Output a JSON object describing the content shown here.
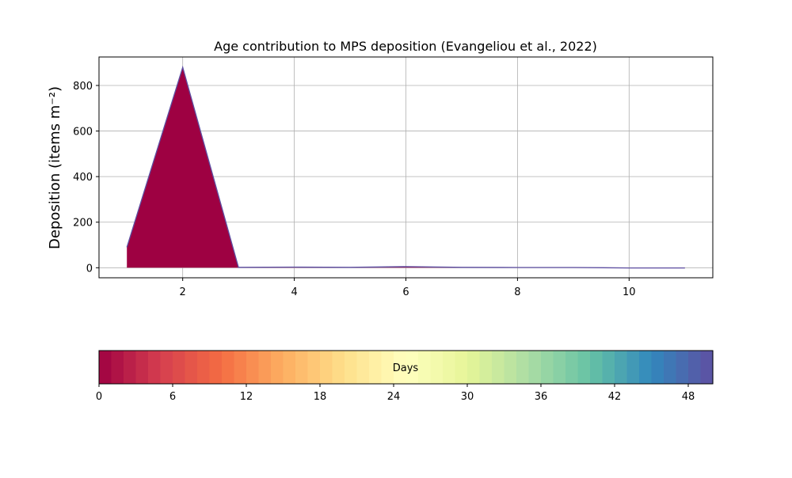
{
  "chart_data": {
    "type": "area",
    "title": "Age contribution to MPS deposition (Evangeliou et al., 2022)",
    "xlabel": "",
    "ylabel": "Deposition (items m⁻²)",
    "xlim": [
      0.5,
      11.5
    ],
    "ylim": [
      -44,
      925
    ],
    "x_ticks": [
      2,
      4,
      6,
      8,
      10
    ],
    "y_ticks": [
      0,
      200,
      400,
      600,
      800
    ],
    "grid": true,
    "x": [
      1,
      2,
      3,
      4,
      5,
      6,
      7,
      8,
      9,
      10,
      11
    ],
    "series": [
      {
        "values": [
          90,
          880,
          2,
          3,
          2,
          5,
          2,
          1,
          1,
          -1,
          -1
        ],
        "color": "#9e0142"
      }
    ],
    "colorbar": {
      "label": "Days",
      "min": 0,
      "max": 50,
      "ticks": [
        0,
        6,
        12,
        18,
        24,
        30,
        36,
        42,
        48
      ],
      "colormap": "Spectral",
      "levels": 50,
      "stops": [
        "#9e0142",
        "#d53e4f",
        "#f46d43",
        "#fdae61",
        "#fee08b",
        "#ffffbf",
        "#e6f598",
        "#abdda4",
        "#66c2a5",
        "#3288bd",
        "#5e4fa2"
      ]
    }
  }
}
